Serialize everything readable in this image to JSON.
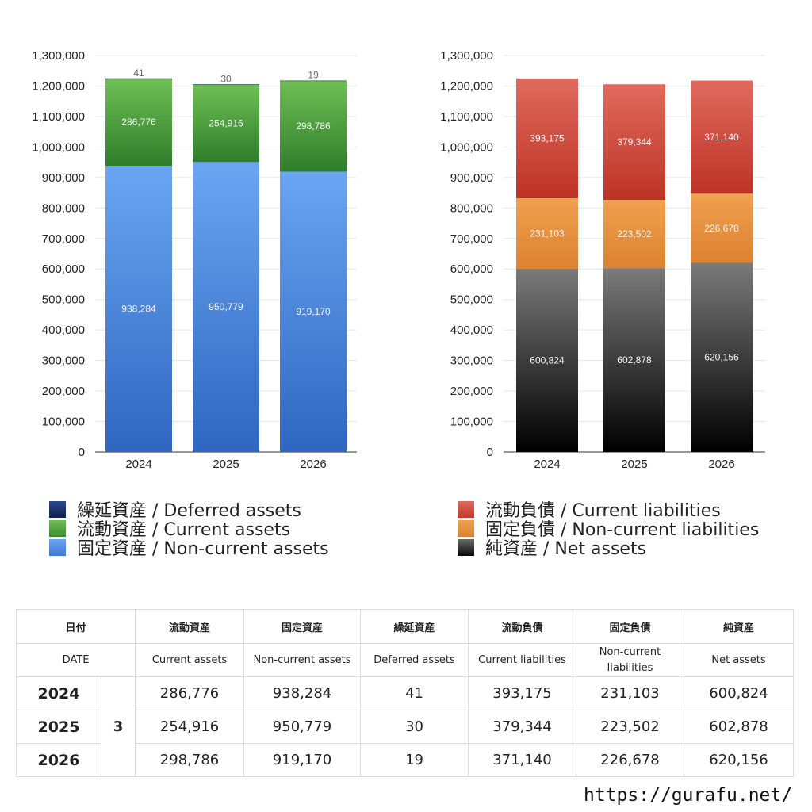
{
  "colors": {
    "deferred_assets": "#1a2f6b",
    "current_assets": "#4a9a3c",
    "noncurrent_assets": "#5b93e2",
    "current_liabilities": "#d2473a",
    "noncurrent_liabilities": "#e8923b",
    "net_assets": "#3a3a3a"
  },
  "chart_data": [
    {
      "type": "bar",
      "stacked": true,
      "categories": [
        "2024",
        "2025",
        "2026"
      ],
      "ylim": [
        0,
        1300000
      ],
      "yticks": [
        "0",
        "100,000",
        "200,000",
        "300,000",
        "400,000",
        "500,000",
        "600,000",
        "700,000",
        "800,000",
        "900,000",
        "1,000,000",
        "1,100,000",
        "1,200,000",
        "1,300,000"
      ],
      "grid": true,
      "series": [
        {
          "name": "固定資産 / Non-current assets",
          "values": [
            938284,
            950779,
            919170
          ],
          "labels": [
            "938,284",
            "950,779",
            "919,170"
          ]
        },
        {
          "name": "流動資産 / Current assets",
          "values": [
            286776,
            254916,
            298786
          ],
          "labels": [
            "286,776",
            "254,916",
            "298,786"
          ]
        },
        {
          "name": "繰延資産 / Deferred assets",
          "values": [
            41,
            30,
            19
          ],
          "labels": [
            "41",
            "30",
            "19"
          ]
        }
      ]
    },
    {
      "type": "bar",
      "stacked": true,
      "categories": [
        "2024",
        "2025",
        "2026"
      ],
      "ylim": [
        0,
        1300000
      ],
      "yticks": [
        "0",
        "100,000",
        "200,000",
        "300,000",
        "400,000",
        "500,000",
        "600,000",
        "700,000",
        "800,000",
        "900,000",
        "1,000,000",
        "1,100,000",
        "1,200,000",
        "1,300,000"
      ],
      "grid": true,
      "series": [
        {
          "name": "純資産 / Net assets",
          "values": [
            600824,
            602878,
            620156
          ],
          "labels": [
            "600,824",
            "602,878",
            "620,156"
          ]
        },
        {
          "name": "固定負債 / Non-current liabilities",
          "values": [
            231103,
            223502,
            226678
          ],
          "labels": [
            "231,103",
            "223,502",
            "226,678"
          ]
        },
        {
          "name": "流動負債 / Current liabilities",
          "values": [
            393175,
            379344,
            371140
          ],
          "labels": [
            "393,175",
            "379,344",
            "371,140"
          ]
        }
      ]
    }
  ],
  "legend_left": [
    {
      "label": "繰延資産 / Deferred assets",
      "color": "#1a2f6b"
    },
    {
      "label": "流動資産 / Current assets",
      "color": "#4a9a3c"
    },
    {
      "label": "固定資産 / Non-current assets",
      "color": "#5b93e2"
    }
  ],
  "legend_right": [
    {
      "label": "流動負債 / Current liabilities",
      "color": "#d2473a"
    },
    {
      "label": "固定負債 / Non-current liabilities",
      "color": "#e8923b"
    },
    {
      "label": "純資産 / Net assets",
      "color": "#3a3a3a"
    }
  ],
  "table": {
    "header_jp": [
      "日付",
      "流動資産",
      "固定資産",
      "繰延資産",
      "流動負債",
      "固定負債",
      "純資産"
    ],
    "header_en": [
      "DATE",
      "Current assets",
      "Non-current assets",
      "Deferred assets",
      "Current liabilities",
      "Non-current liabilities",
      "Net assets"
    ],
    "rows": [
      {
        "year": "2024",
        "month": "3",
        "cells": [
          "286,776",
          "938,284",
          "41",
          "393,175",
          "231,103",
          "600,824"
        ]
      },
      {
        "year": "2025",
        "month": "3",
        "cells": [
          "254,916",
          "950,779",
          "30",
          "379,344",
          "223,502",
          "602,878"
        ]
      },
      {
        "year": "2026",
        "month": "3",
        "cells": [
          "298,786",
          "919,170",
          "19",
          "371,140",
          "226,678",
          "620,156"
        ]
      }
    ]
  },
  "source": "https://gurafu.net/"
}
